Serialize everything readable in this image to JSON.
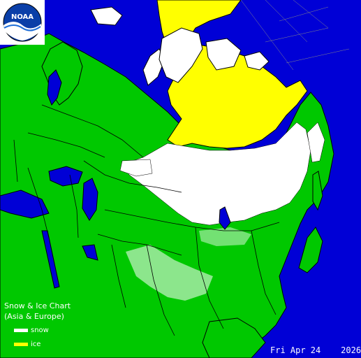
{
  "legend": {
    "title": "Snow & Ice Chart",
    "subtitle": "(Asia & Europe)",
    "items": [
      {
        "label": "snow",
        "color": "#ffffff"
      },
      {
        "label": "ice",
        "color": "#ffff00"
      }
    ]
  },
  "date_label": "Fri Apr 24    2026",
  "logo": {
    "text": "NOAA",
    "icon": "noaa-logo"
  },
  "colors": {
    "water": "#0000d6",
    "land": "#00c800",
    "snow": "#ffffff",
    "ice": "#ffff00",
    "border": "#000000"
  }
}
